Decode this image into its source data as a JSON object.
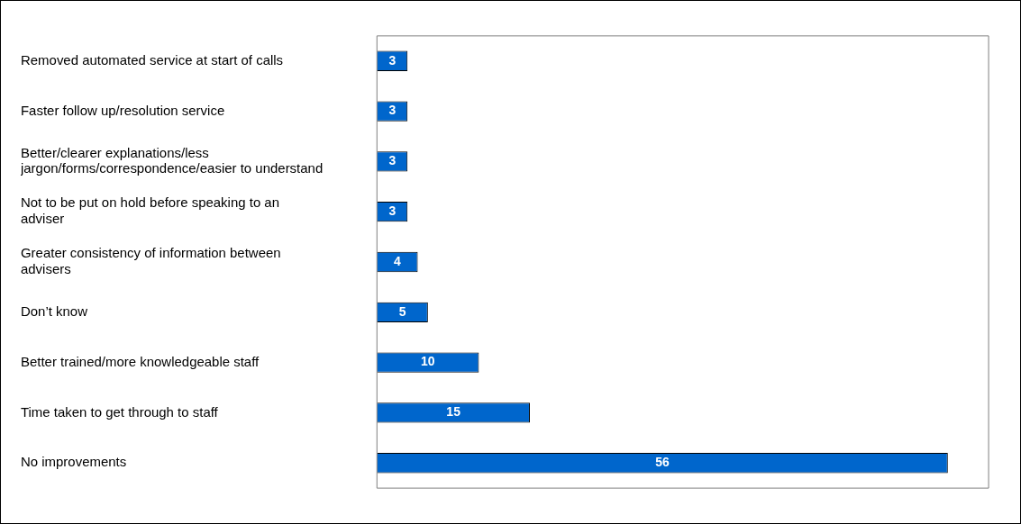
{
  "chart_data": {
    "type": "bar",
    "orientation": "horizontal",
    "categories": [
      "Removed automated service at start of calls",
      "Faster follow up/resolution service",
      "Better/clearer explanations/less jargon/forms/correspondence/easier to understand",
      "Not to be put on hold before speaking to an adviser",
      "Greater consistency of information between advisers",
      "Don’t know",
      "Better trained/more knowledgeable staff",
      "Time taken to get through to staff",
      "No improvements"
    ],
    "values": [
      3,
      3,
      3,
      3,
      4,
      5,
      10,
      15,
      56
    ],
    "color": "#0066cc",
    "data_labels": true,
    "grid": false,
    "legend": false
  }
}
